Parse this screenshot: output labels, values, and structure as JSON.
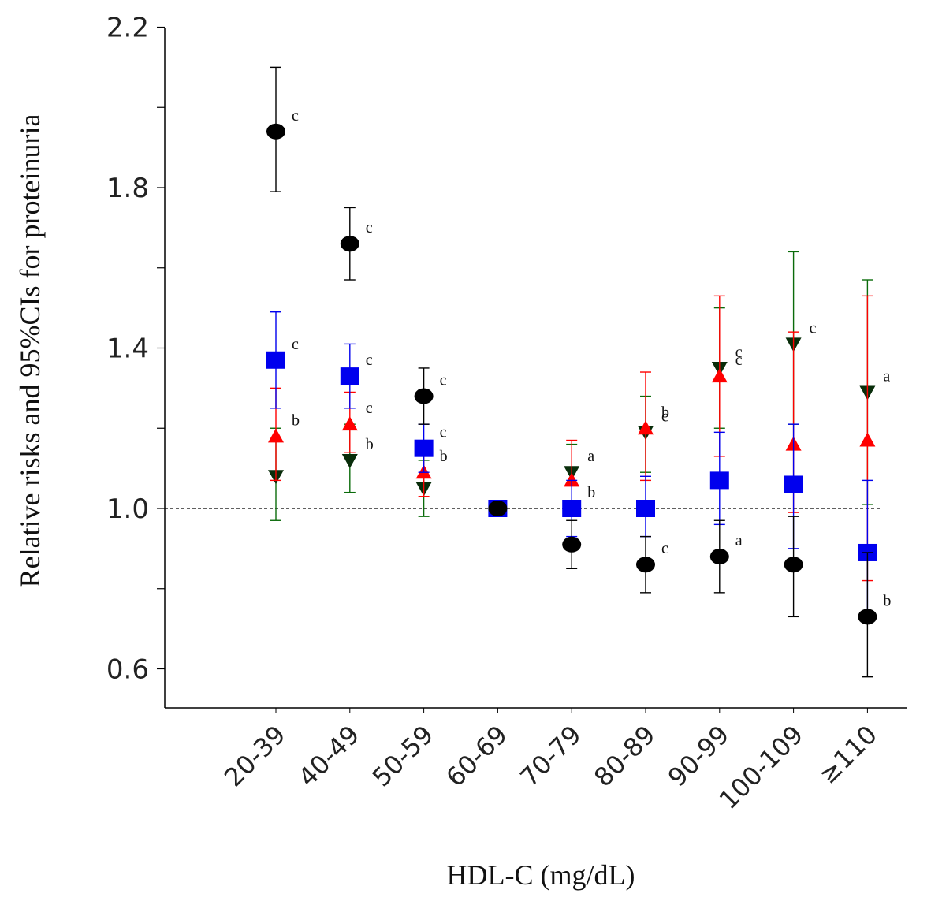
{
  "chart_data": {
    "type": "scatter",
    "title": "",
    "xlabel": "HDL-C (mg/dL)",
    "ylabel": "Relative risks and 95%CIs for proteinuria",
    "categories": [
      "20-39",
      "40-49",
      "50-59",
      "60-69",
      "70-79",
      "80-89",
      "90-99",
      "100-109",
      "≥110"
    ],
    "ylim": [
      0.5,
      2.2
    ],
    "yticks": [
      "0.6",
      "1.0",
      "1.4",
      "1.8",
      "2.2"
    ],
    "reference_line": 1.0,
    "series": [
      {
        "marker": "circle",
        "color": "#000000",
        "values": [
          1.94,
          1.66,
          1.28,
          1.0,
          0.91,
          0.86,
          0.88,
          0.86,
          0.73
        ],
        "lower": [
          1.79,
          1.57,
          1.21,
          1.0,
          0.85,
          0.79,
          0.79,
          0.73,
          0.58
        ],
        "upper": [
          2.1,
          1.75,
          1.35,
          1.0,
          0.97,
          0.93,
          0.97,
          0.98,
          0.89
        ],
        "labels": [
          "c",
          "c",
          "c",
          "",
          "",
          "c",
          "a",
          "",
          "b"
        ]
      },
      {
        "marker": "square",
        "color": "#0000ee",
        "values": [
          1.37,
          1.33,
          1.15,
          1.0,
          1.0,
          1.0,
          1.07,
          1.06,
          0.89
        ],
        "lower": [
          1.25,
          1.25,
          1.09,
          0.99,
          0.93,
          0.93,
          0.96,
          0.9,
          0.72
        ],
        "upper": [
          1.49,
          1.41,
          1.21,
          1.01,
          1.07,
          1.08,
          1.19,
          1.21,
          1.07
        ],
        "labels": [
          "c",
          "c",
          "c",
          "",
          "b",
          "",
          "",
          "",
          ""
        ]
      },
      {
        "marker": "triangle-up",
        "color": "#ff0000",
        "values": [
          1.18,
          1.21,
          1.09,
          1.0,
          1.07,
          1.2,
          1.33,
          1.16,
          1.17
        ],
        "lower": [
          1.07,
          1.14,
          1.03,
          0.99,
          0.98,
          1.07,
          1.13,
          0.99,
          0.82
        ],
        "upper": [
          1.3,
          1.29,
          1.15,
          1.01,
          1.17,
          1.34,
          1.53,
          1.44,
          1.53
        ],
        "labels": [
          "b",
          "c",
          "b",
          "",
          "",
          "b",
          "c",
          "",
          ""
        ]
      },
      {
        "marker": "triangle-down",
        "color": "#0a6b0a",
        "markerFill": "#082d0a",
        "values": [
          1.08,
          1.12,
          1.05,
          1.0,
          1.09,
          1.19,
          1.35,
          1.41,
          1.29
        ],
        "lower": [
          0.97,
          1.04,
          0.98,
          0.99,
          1.01,
          1.09,
          1.2,
          1.21,
          1.01
        ],
        "upper": [
          1.2,
          1.21,
          1.12,
          1.01,
          1.16,
          1.28,
          1.5,
          1.64,
          1.57
        ],
        "labels": [
          "",
          "b",
          "",
          "",
          "a",
          "c",
          "c",
          "c",
          "a"
        ]
      }
    ],
    "grid": false,
    "legend": "none"
  }
}
